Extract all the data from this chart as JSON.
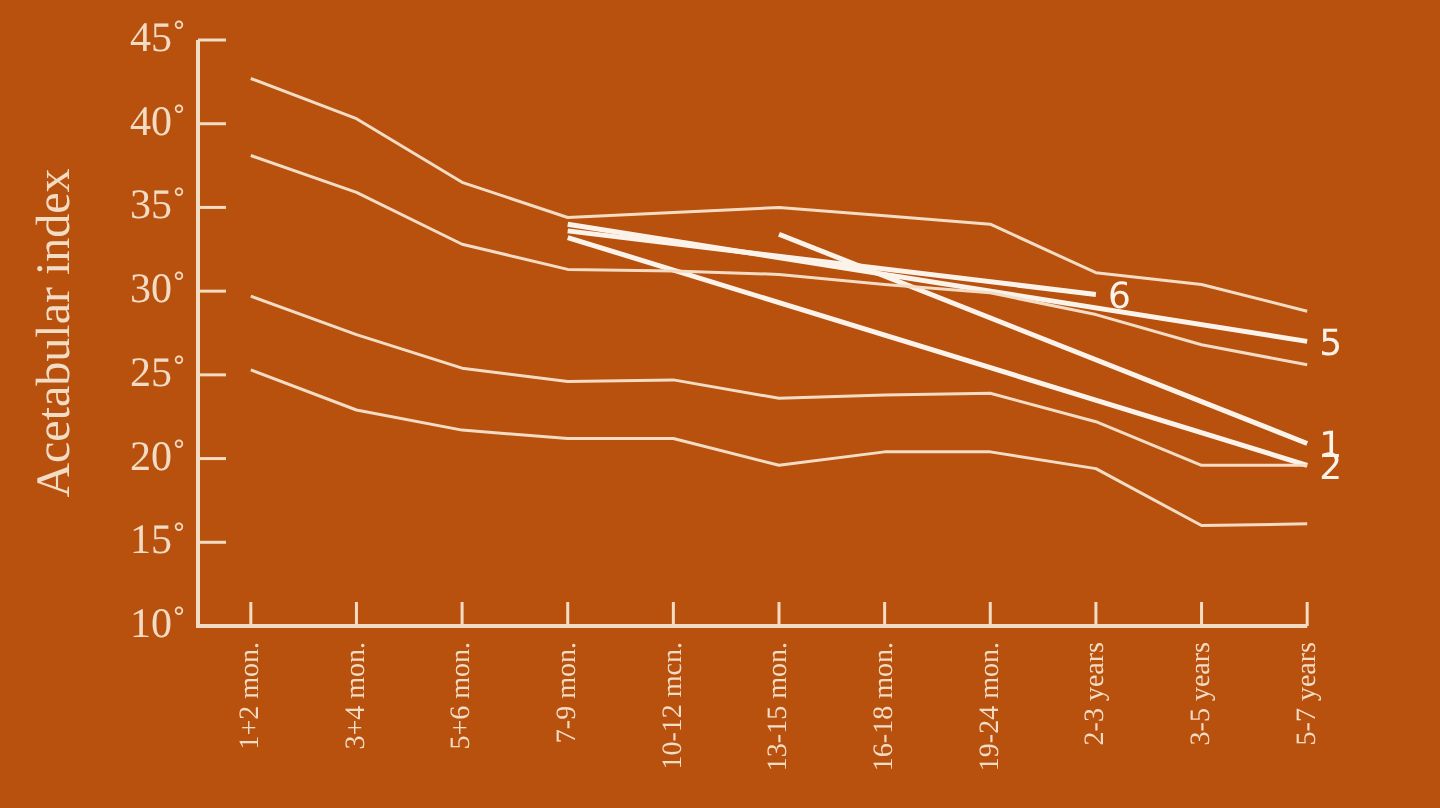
{
  "chart_data": {
    "type": "line",
    "ylabel": "Acetabular index",
    "categories": [
      "1+2 mon.",
      "3+4 mon.",
      "5+6 mon.",
      "7-9 mon.",
      "10-12 mcn.",
      "13-15 mon.",
      "16-18 mon.",
      "19-24 mon.",
      "2-3 years",
      "3-5 years",
      "5-7 years"
    ],
    "series": [
      {
        "color": "#f3dcc4",
        "values": [
          42.7,
          40.3,
          36.5,
          34.4,
          34.7,
          35.0,
          34.5,
          34.0,
          31.1,
          30.4,
          28.8
        ]
      },
      {
        "color": "#f3dcc4",
        "values": [
          38.1,
          35.9,
          32.8,
          31.3,
          31.2,
          31.0,
          30.4,
          29.9,
          28.6,
          26.8,
          25.6
        ]
      },
      {
        "color": "#f3dcc4",
        "values": [
          29.7,
          27.4,
          25.4,
          24.6,
          24.7,
          23.6,
          23.8,
          23.9,
          22.2,
          19.6,
          19.6
        ]
      },
      {
        "color": "#f3dcc4",
        "values": [
          25.3,
          22.9,
          21.7,
          21.2,
          21.2,
          19.6,
          20.4,
          20.4,
          19.4,
          16.0,
          16.1
        ]
      },
      {
        "name": "1",
        "color": "#fbf3ea",
        "values": [
          null,
          null,
          null,
          null,
          null,
          33.4,
          null,
          null,
          null,
          null,
          20.9
        ]
      },
      {
        "name": "2",
        "color": "#fbf3ea",
        "values": [
          null,
          null,
          null,
          33.2,
          null,
          null,
          null,
          null,
          null,
          null,
          19.6
        ]
      },
      {
        "name": "5",
        "color": "#fbf3ea",
        "values": [
          null,
          null,
          null,
          34.0,
          null,
          null,
          null,
          null,
          null,
          null,
          27.0
        ]
      },
      {
        "name": "6",
        "color": "#fbf3ea",
        "values": [
          null,
          null,
          null,
          33.6,
          null,
          null,
          null,
          null,
          29.8,
          null,
          null
        ]
      }
    ],
    "ylim": [
      10,
      45
    ],
    "yticks": [
      {
        "value": 10,
        "label": "10˚"
      },
      {
        "value": 15,
        "label": "15˚"
      },
      {
        "value": 20,
        "label": "20˚"
      },
      {
        "value": 25,
        "label": "25˚"
      },
      {
        "value": 30,
        "label": "30˚"
      },
      {
        "value": 35,
        "label": "35˚"
      },
      {
        "value": 40,
        "label": "40˚"
      },
      {
        "value": 45,
        "label": "45˚"
      }
    ],
    "grid": false,
    "legend": false,
    "marker": "none",
    "line_style": "solid"
  }
}
